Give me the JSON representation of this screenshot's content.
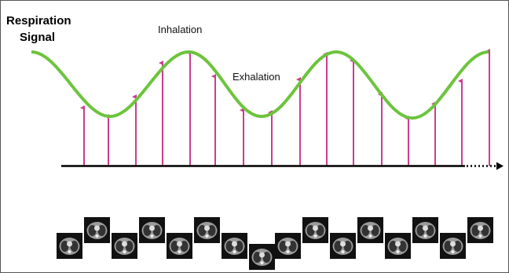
{
  "labels": {
    "title_line1": "Respiration",
    "title_line2": "Signal",
    "inhalation": "Inhalation",
    "exhalation": "Exhalation"
  }
}
